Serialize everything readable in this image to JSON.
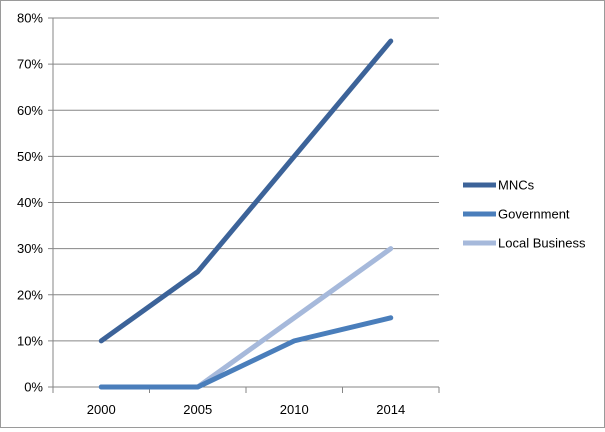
{
  "chart_data": {
    "type": "line",
    "categories": [
      "2000",
      "2005",
      "2010",
      "2014"
    ],
    "ylim": [
      0,
      80
    ],
    "y_ticks": [
      0,
      10,
      20,
      30,
      40,
      50,
      60,
      70,
      80
    ],
    "y_tick_labels": [
      "0%",
      "10%",
      "20%",
      "30%",
      "40%",
      "50%",
      "60%",
      "70%",
      "80%"
    ],
    "grid": true,
    "legend_position": "right",
    "series": [
      {
        "name": "MNCs",
        "values": [
          10,
          25,
          50,
          75
        ],
        "color": "#3c6399"
      },
      {
        "name": "Government",
        "values": [
          0,
          0,
          10,
          15
        ],
        "color": "#4a7ebb"
      },
      {
        "name": "Local Business",
        "values": [
          0,
          0,
          15,
          30
        ],
        "color": "#a6b9db"
      }
    ]
  }
}
